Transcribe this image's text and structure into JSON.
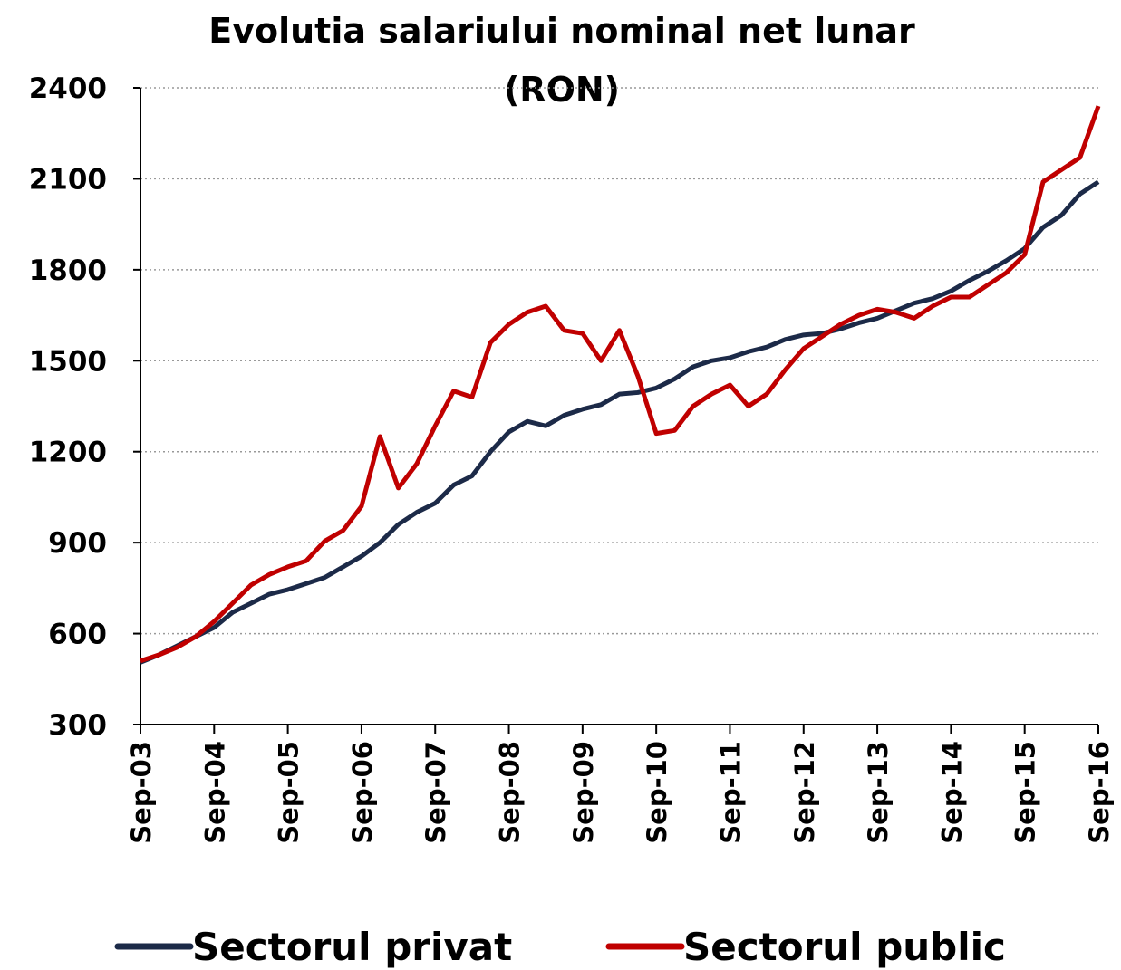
{
  "chart_data": {
    "type": "line",
    "title": [
      "Evolutia salariului nominal net lunar",
      "(RON)"
    ],
    "categories": [
      "Sep-03",
      null,
      null,
      null,
      "Sep-04",
      null,
      null,
      null,
      "Sep-05",
      null,
      null,
      null,
      "Sep-06",
      null,
      null,
      null,
      "Sep-07",
      null,
      null,
      null,
      "Sep-08",
      null,
      null,
      null,
      "Sep-09",
      null,
      null,
      null,
      "Sep-10",
      null,
      null,
      null,
      "Sep-11",
      null,
      null,
      null,
      "Sep-12",
      null,
      null,
      null,
      "Sep-13",
      null,
      null,
      null,
      "Sep-14",
      null,
      null,
      null,
      "Sep-15",
      null,
      null,
      null,
      "Sep-16"
    ],
    "series": [
      {
        "name": "Sectorul privat",
        "color": "#1c2a48",
        "values": [
          505,
          530,
          560,
          590,
          620,
          670,
          700,
          730,
          745,
          765,
          785,
          820,
          855,
          900,
          960,
          1000,
          1030,
          1090,
          1120,
          1200,
          1265,
          1300,
          1285,
          1320,
          1340,
          1355,
          1390,
          1395,
          1410,
          1440,
          1480,
          1500,
          1510,
          1530,
          1545,
          1570,
          1585,
          1590,
          1605,
          1625,
          1640,
          1665,
          1690,
          1705,
          1730,
          1765,
          1795,
          1830,
          1870,
          1940,
          1980,
          2050,
          2090
        ]
      },
      {
        "name": "Sectorul public",
        "color": "#c00000",
        "values": [
          510,
          530,
          555,
          590,
          640,
          700,
          760,
          795,
          820,
          840,
          905,
          940,
          1020,
          1250,
          1080,
          1160,
          1285,
          1400,
          1380,
          1560,
          1620,
          1660,
          1680,
          1600,
          1590,
          1500,
          1600,
          1450,
          1260,
          1270,
          1350,
          1390,
          1420,
          1350,
          1390,
          1470,
          1540,
          1580,
          1620,
          1650,
          1670,
          1660,
          1640,
          1680,
          1710,
          1710,
          1750,
          1790,
          1850,
          2090,
          2130,
          2170,
          2340
        ]
      }
    ],
    "ylim": [
      300,
      2400
    ],
    "yticks": [
      300,
      600,
      900,
      1200,
      1500,
      1800,
      2100,
      2400
    ],
    "grid": true
  }
}
